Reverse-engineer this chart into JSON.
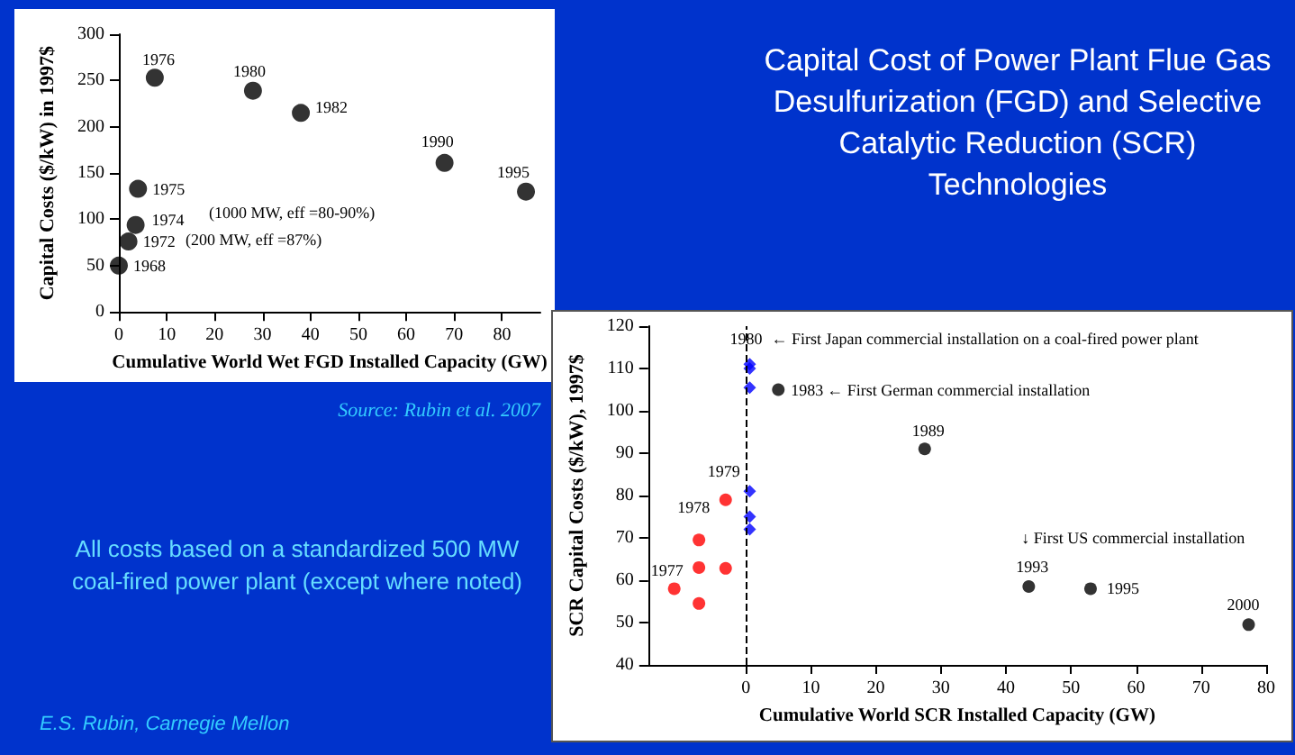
{
  "chart_data": [
    {
      "type": "scatter",
      "xlabel": "Cumulative World Wet FGD Installed Capacity (GW)",
      "ylabel": "Capital Costs ($/kW) in 1997$",
      "x": [
        0,
        2,
        3.5,
        4,
        7.5,
        28,
        38,
        68,
        85
      ],
      "values": [
        50,
        76,
        94,
        133,
        253,
        239,
        215,
        161,
        130
      ],
      "color": "#000000",
      "marker": "circle",
      "xlim": [
        0,
        88
      ],
      "xticks": [
        0,
        10,
        20,
        30,
        40,
        50,
        60,
        70,
        80
      ],
      "ylim": [
        0,
        300
      ],
      "yticks": [
        0,
        50,
        100,
        150,
        200,
        250,
        300
      ],
      "annotations": [
        {
          "text": "1968",
          "x": 0,
          "y": 50
        },
        "(200 MW, eff =87%)",
        {
          "text": "1972",
          "x": 2,
          "y": 76
        },
        "(1000 MW, eff =80-90%)",
        {
          "text": "1974",
          "x": 3.5,
          "y": 94
        },
        {
          "text": "1975",
          "x": 4,
          "y": 133
        },
        {
          "text": "1976",
          "x": 7.5,
          "y": 253
        },
        {
          "text": "1980",
          "x": 28,
          "y": 239
        },
        {
          "text": "1982",
          "x": 38,
          "y": 215
        },
        {
          "text": "1990",
          "x": 68,
          "y": 161
        },
        {
          "text": "1995",
          "x": 85,
          "y": 130
        }
      ]
    },
    {
      "type": "scatter",
      "xlabel": "Cumulative World SCR Installed Capacity (GW)",
      "ylabel": "SCR Capital Costs ($/kW), 1997$",
      "xlim": [
        -15,
        80
      ],
      "xticks": [
        0,
        10,
        20,
        30,
        40,
        50,
        60,
        70,
        80
      ],
      "ylim": [
        40,
        120
      ],
      "yticks": [
        40,
        50,
        60,
        70,
        80,
        90,
        100,
        110,
        120
      ],
      "series": [
        {
          "color": "#ff0000",
          "marker": "circle",
          "x": [
            -11,
            -7.2,
            -7.2,
            -7.2,
            -3.1,
            -3.1
          ],
          "values": [
            58,
            69.5,
            63,
            54.5,
            79,
            62.8
          ]
        },
        {
          "color": "#0000ff",
          "marker": "diamond",
          "x": [
            0.6,
            0.6,
            0.6,
            0.6,
            0.6,
            0.6
          ],
          "values": [
            111,
            110,
            105.5,
            81,
            75,
            72
          ]
        },
        {
          "color": "#000000",
          "marker": "circle",
          "x": [
            5,
            27.5,
            43.5,
            53,
            77.3
          ],
          "values": [
            105,
            91,
            58.5,
            58,
            49.5
          ]
        }
      ],
      "ref_lines": [
        {
          "axis": "x",
          "value": 0,
          "color": "#000000",
          "line_style": "dashed"
        }
      ],
      "annotations": [
        {
          "text": "1980",
          "x": 0.6,
          "y": 111
        },
        {
          "text": "← First Japan commercial installation on a coal-fired power plant",
          "x": 0.6,
          "y": 111
        },
        {
          "text": "1983",
          "x": 5,
          "y": 105
        },
        {
          "text": "← First German commercial installation",
          "x": 5,
          "y": 105
        },
        {
          "text": "1989",
          "x": 27.5,
          "y": 91
        },
        {
          "text": "1979",
          "x": -3.1,
          "y": 79
        },
        {
          "text": "1978",
          "x": -7.2,
          "y": 69.5
        },
        {
          "text": "1977",
          "x": -11,
          "y": 58
        },
        {
          "text": "↓ First US commercial installation",
          "x": 43.5,
          "y": 58.5
        },
        {
          "text": "1993",
          "x": 43.5,
          "y": 58.5
        },
        {
          "text": "1995",
          "x": 53,
          "y": 58
        },
        {
          "text": "2000",
          "x": 77.3,
          "y": 49.5
        }
      ]
    },
    {
      "type": "other",
      "title": "Capital Cost of Power Plant Flue Gas Desulfurization (FGD) and Selective Catalytic Reduction (SCR) Technologies",
      "annotations": [
        "Source: Rubin et al. 2007",
        "All costs based on a standardized 500 MW coal-fired power plant (except where noted)",
        "E.S. Rubin, Carnegie Mellon"
      ]
    }
  ]
}
